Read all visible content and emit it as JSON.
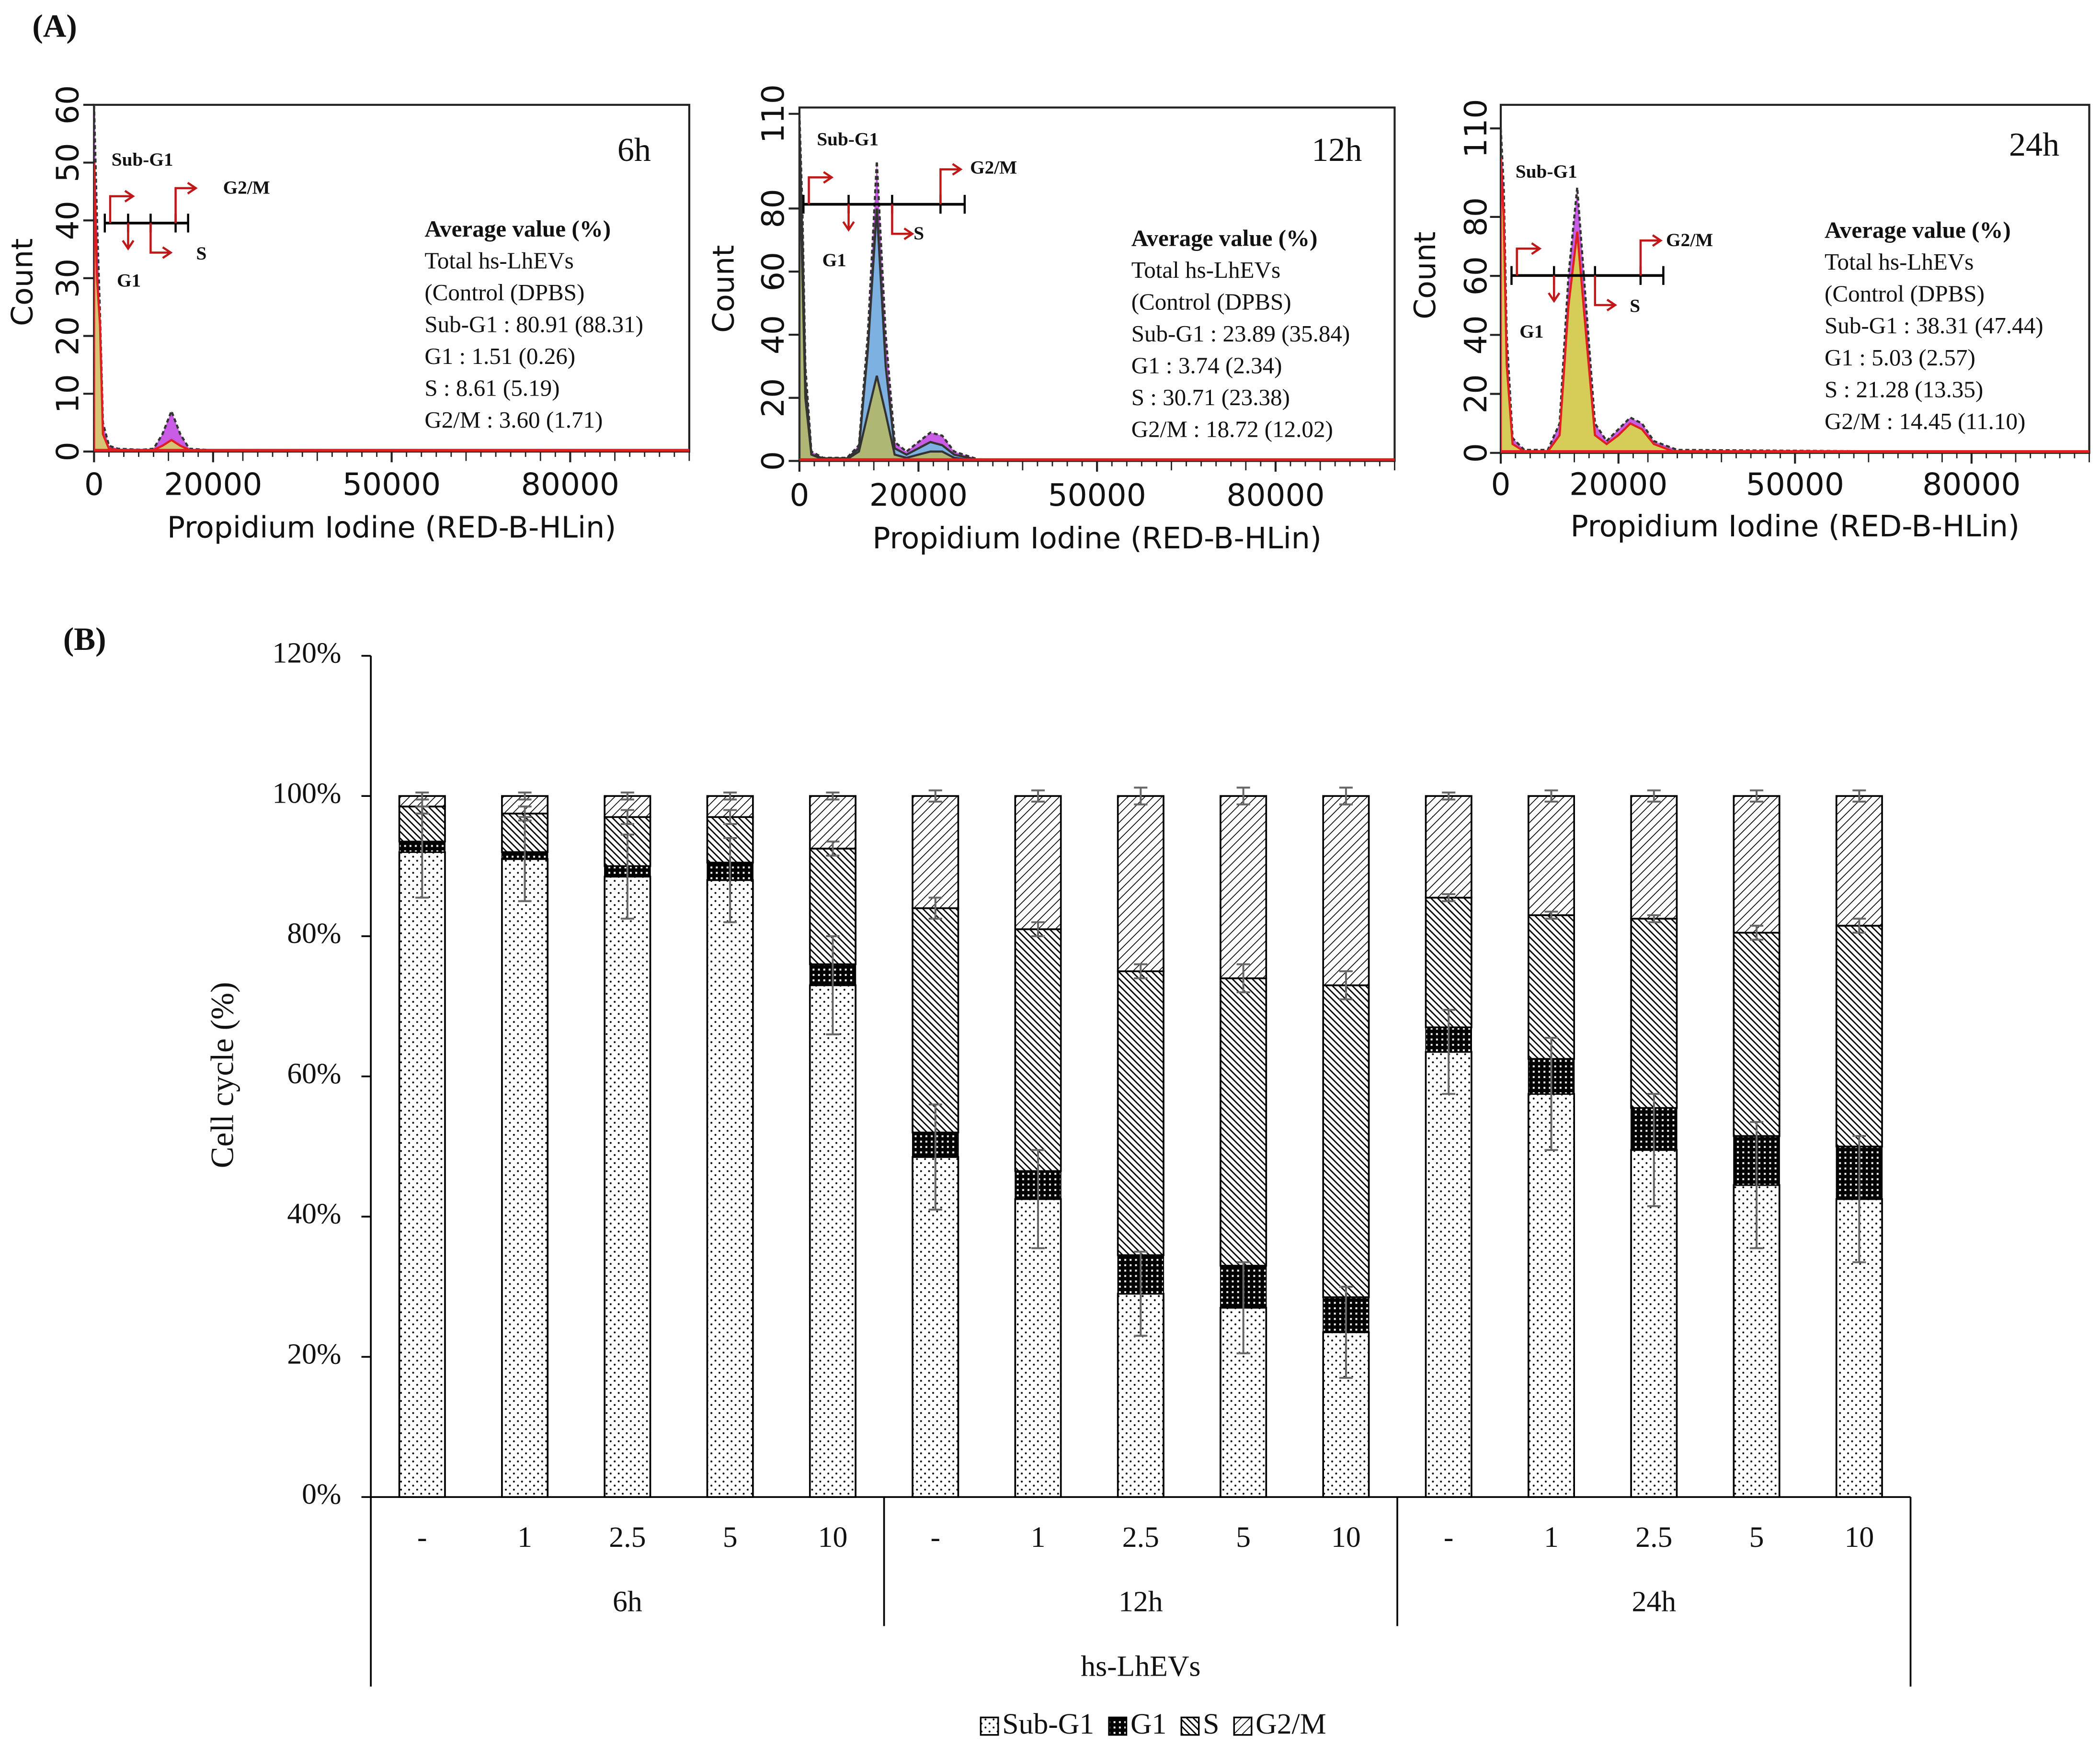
{
  "panel_labels": [
    "(A)",
    "(B)"
  ],
  "chart_data": [
    {
      "type": "flow-histogram",
      "title": "6h",
      "x_label": "Propidium Iodine (RED-B-HLin)",
      "y_label": "Count",
      "xlim": [
        0,
        100000
      ],
      "xticks": [
        0,
        20000,
        50000,
        80000
      ],
      "ylim": [
        0,
        60
      ],
      "yticks": [
        0,
        10,
        20,
        30,
        40,
        50,
        60
      ],
      "x": [
        0,
        500,
        1000,
        1500,
        2500,
        4000,
        8000,
        10000,
        11500,
        13000,
        14500,
        16000,
        20000,
        40000,
        100000
      ],
      "series": [
        {
          "color": "#c040e0",
          "stroke": "#333333",
          "values": [
            60,
            40,
            24,
            5,
            1,
            0.5,
            0.3,
            0.5,
            3,
            7,
            3,
            0.5,
            0.2,
            0,
            0
          ]
        },
        {
          "color": "#d8d860",
          "stroke": "#e02020",
          "values": [
            50,
            30,
            22,
            3,
            0.5,
            0.3,
            0.2,
            0.3,
            1,
            2,
            1,
            0.3,
            0.1,
            0,
            0
          ]
        }
      ],
      "gates": [
        "Sub-G1",
        "G1",
        "S",
        "G2/M"
      ],
      "annotations": [
        "Average value (%)",
        "Total hs-LhEVs",
        "(Control (DPBS)",
        "Sub-G1 : 80.91 (88.31)",
        "G1 : 1.51 (0.26)",
        "S : 8.61 (5.19)",
        "G2/M : 3.60 (1.71)"
      ]
    },
    {
      "type": "flow-histogram",
      "title": "12h",
      "x_label": "Propidium Iodine (RED-B-HLin)",
      "y_label": "Count",
      "xlim": [
        0,
        100000
      ],
      "xticks": [
        0,
        20000,
        50000,
        80000
      ],
      "ylim": [
        0,
        112
      ],
      "yticks": [
        0,
        20,
        40,
        60,
        80,
        110
      ],
      "x": [
        0,
        500,
        1000,
        2000,
        4000,
        8000,
        10000,
        11500,
        13000,
        14500,
        16000,
        18000,
        20000,
        22000,
        24000,
        26000,
        30000,
        100000
      ],
      "series": [
        {
          "color": "#c040e0",
          "stroke": "#333333",
          "values": [
            110,
            80,
            30,
            3,
            1,
            1,
            5,
            40,
            95,
            40,
            6,
            3,
            6,
            9,
            8,
            3,
            0.5,
            0
          ]
        },
        {
          "color": "#70c0e0",
          "stroke": "#333333",
          "values": [
            105,
            70,
            25,
            2,
            0.8,
            0.8,
            4,
            35,
            80,
            30,
            4,
            2,
            4,
            6,
            5,
            2,
            0.3,
            0
          ]
        },
        {
          "color": "#b8b860",
          "stroke": "#333333",
          "values": [
            100,
            60,
            20,
            2,
            0.5,
            0.5,
            3,
            15,
            27,
            15,
            2,
            1,
            2,
            3,
            3,
            1,
            0,
            0
          ]
        }
      ],
      "gates": [
        "Sub-G1",
        "G1",
        "S",
        "G2/M"
      ],
      "annotations": [
        "Average value (%)",
        "Total hs-LhEVs",
        "(Control (DPBS)",
        "Sub-G1 : 23.89 (35.84)",
        "G1 : 3.74 (2.34)",
        "S : 30.71 (23.38)",
        "G2/M : 18.72 (12.02)"
      ]
    },
    {
      "type": "flow-histogram",
      "title": "24h",
      "x_label": "Propidium Iodine (RED-B-HLin)",
      "y_label": "Count",
      "xlim": [
        0,
        100000
      ],
      "xticks": [
        0,
        20000,
        50000,
        80000
      ],
      "ylim": [
        0,
        118
      ],
      "yticks": [
        0,
        20,
        40,
        60,
        80,
        110
      ],
      "x": [
        0,
        500,
        1000,
        2000,
        4000,
        8000,
        10000,
        11500,
        13000,
        14500,
        16000,
        18000,
        20000,
        22000,
        24000,
        26000,
        30000,
        100000
      ],
      "series": [
        {
          "color": "#c040e0",
          "stroke": "#333333",
          "values": [
            110,
            90,
            40,
            5,
            1,
            1,
            10,
            60,
            90,
            50,
            10,
            4,
            8,
            12,
            10,
            4,
            1,
            0
          ]
        },
        {
          "color": "#d8e040",
          "stroke": "#e02020",
          "values": [
            100,
            80,
            30,
            3,
            0.5,
            0.5,
            6,
            50,
            75,
            40,
            6,
            3,
            6,
            10,
            8,
            3,
            0,
            0
          ]
        }
      ],
      "gates": [
        "Sub-G1",
        "G1",
        "S",
        "G2/M"
      ],
      "annotations": [
        "Average value (%)",
        "Total hs-LhEVs",
        "(Control (DPBS)",
        "Sub-G1 : 38.31 (47.44)",
        "G1 : 5.03 (2.57)",
        "S : 21.28 (13.35)",
        "G2/M : 14.45 (11.10)"
      ]
    },
    {
      "type": "stacked-bar",
      "x_label": "hs-LhEVs",
      "y_label": "Cell cycle (%)",
      "ylim": [
        0,
        120
      ],
      "yticks": [
        {
          "value": 0,
          "label": "0%"
        },
        {
          "value": 20,
          "label": "20%"
        },
        {
          "value": 40,
          "label": "40%"
        },
        {
          "value": 60,
          "label": "60%"
        },
        {
          "value": 80,
          "label": "80%"
        },
        {
          "value": 100,
          "label": "100%"
        },
        {
          "value": 120,
          "label": "120%"
        }
      ],
      "groups": [
        {
          "name": "6h",
          "categories": [
            "-",
            "1",
            "2.5",
            "5",
            "10"
          ]
        },
        {
          "name": "12h",
          "categories": [
            "-",
            "1",
            "2.5",
            "5",
            "10"
          ]
        },
        {
          "name": "24h",
          "categories": [
            "-",
            "1",
            "2.5",
            "5",
            "10"
          ]
        }
      ],
      "series": [
        {
          "name": "Sub-G1",
          "pattern": "dots",
          "values": [
            92,
            91,
            88.5,
            88,
            73,
            48.5,
            42.5,
            29,
            27,
            23.5,
            63.5,
            57.5,
            49.5,
            44.5,
            42.5
          ],
          "errors": [
            6.5,
            6,
            6,
            6,
            7,
            7.5,
            7,
            6,
            6.5,
            6.5,
            6,
            8,
            8,
            9,
            9
          ]
        },
        {
          "name": "G1",
          "pattern": "checker",
          "values": [
            1.5,
            1,
            1.5,
            2.5,
            3,
            3.5,
            4,
            5.5,
            6,
            5,
            3.5,
            5,
            6,
            7,
            7.5
          ]
        },
        {
          "name": "S",
          "pattern": "hatch-dense",
          "values": [
            5,
            5.5,
            7,
            6.5,
            16.5,
            32,
            34.5,
            40.5,
            41,
            44.5,
            18.5,
            20.5,
            27,
            29,
            31.5
          ],
          "errors": [
            1,
            1,
            1,
            1,
            1,
            1.5,
            1,
            1,
            2,
            2,
            0.5,
            0.5,
            0.5,
            1,
            1
          ]
        },
        {
          "name": "G2/M",
          "pattern": "hatch-light",
          "values": [
            1.5,
            2.5,
            3,
            3,
            7.5,
            16,
            19,
            25,
            26,
            27,
            14.5,
            17,
            17.5,
            19.5,
            18.5
          ],
          "errors": [
            0.5,
            0.5,
            0.5,
            0.5,
            0.5,
            0.8,
            0.8,
            1.2,
            1.2,
            1.2,
            0.5,
            0.8,
            0.8,
            0.8,
            0.8
          ]
        }
      ],
      "legend": "bottom"
    }
  ]
}
